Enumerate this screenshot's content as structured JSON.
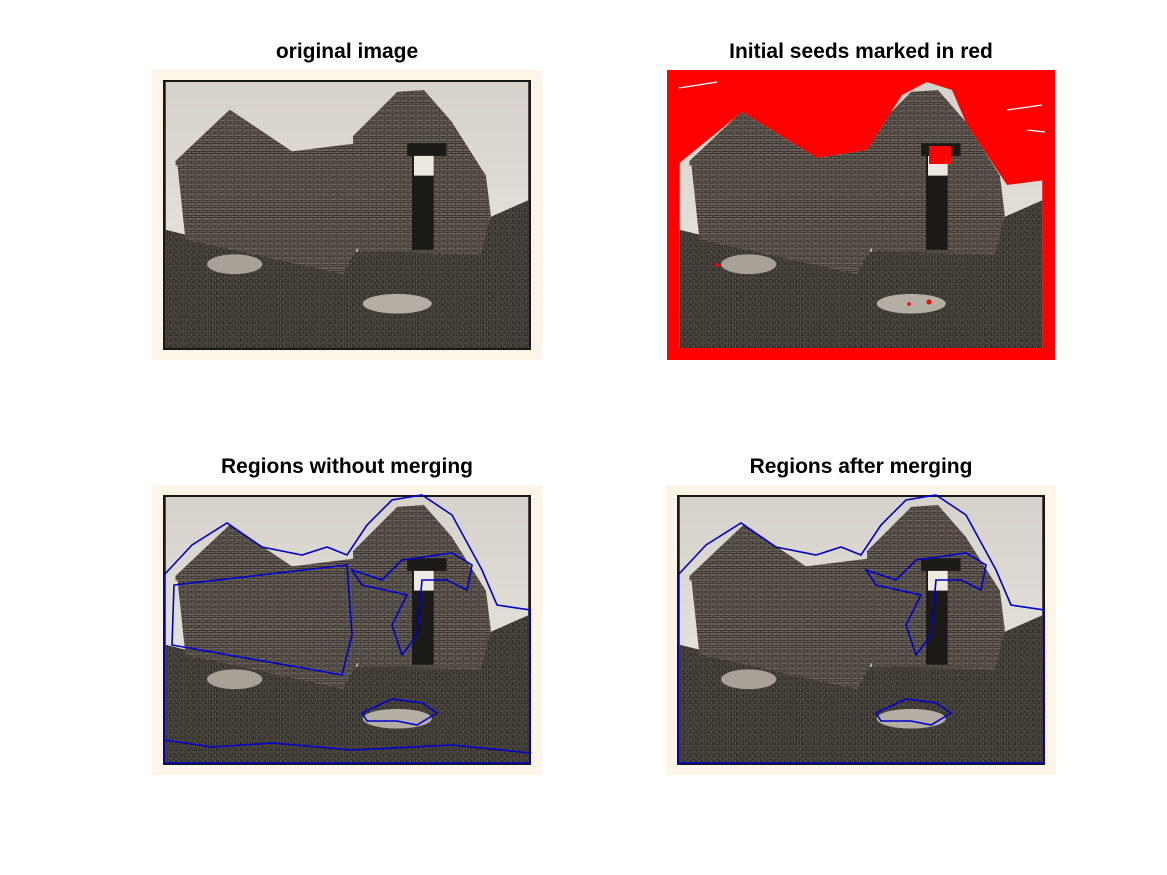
{
  "figure": {
    "panels": [
      {
        "id": "p1",
        "title": "original image"
      },
      {
        "id": "p2",
        "title": "Initial seeds marked in red"
      },
      {
        "id": "p3",
        "title": "Regions without merging"
      },
      {
        "id": "p4",
        "title": "Regions after merging"
      }
    ]
  },
  "colors": {
    "frame": "#fdf6e8",
    "seed": "#ff0000",
    "contour": "#0000cc",
    "sky": "#e8e5df",
    "brick": "#5a524a",
    "grass": "#3e3a34"
  }
}
